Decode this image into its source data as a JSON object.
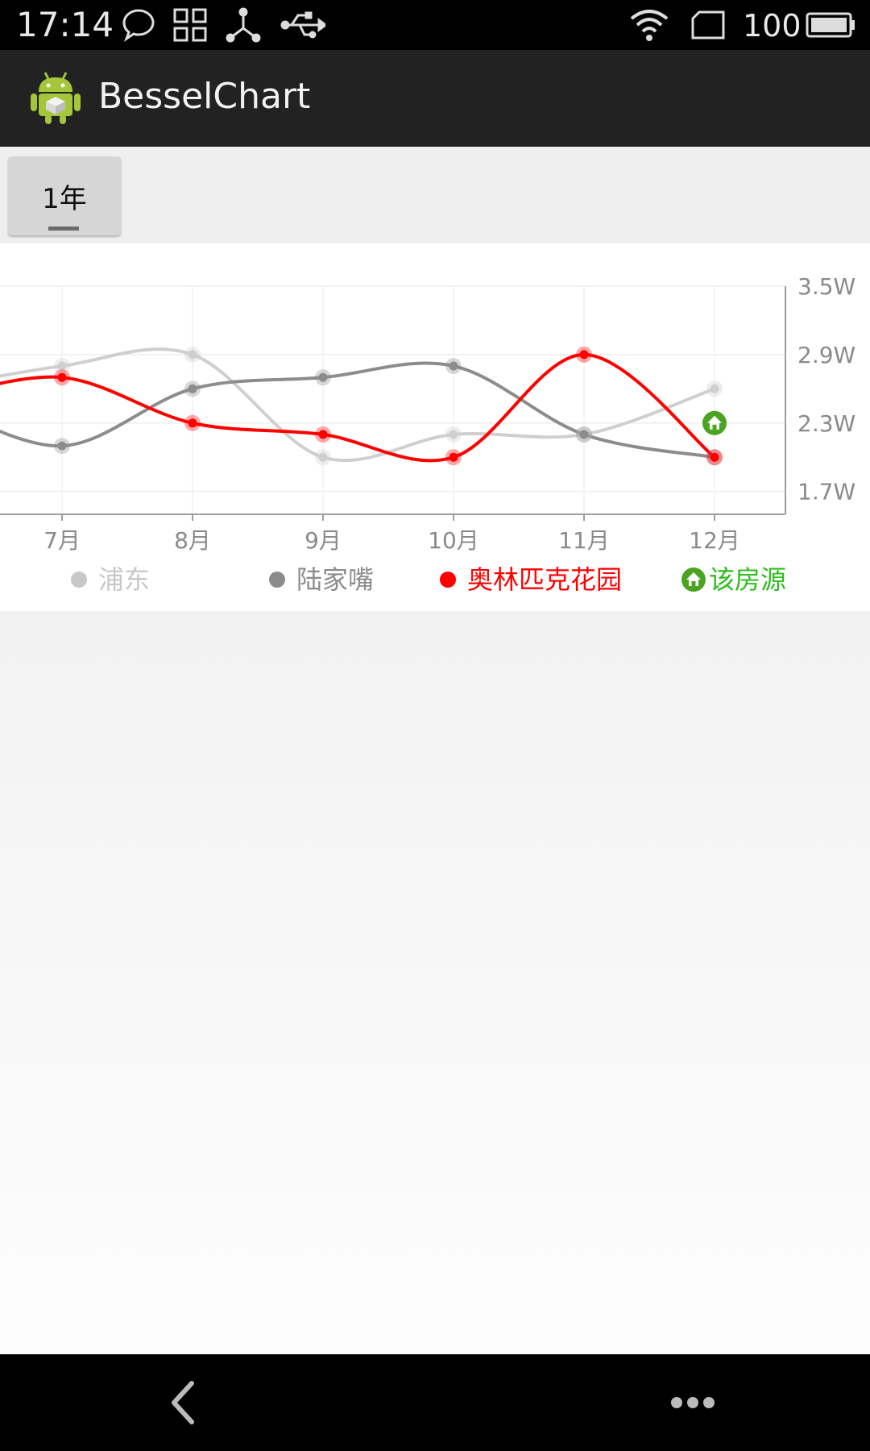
{
  "status_bar": {
    "time": "17:14",
    "battery": "100"
  },
  "action_bar": {
    "title": "BesselChart"
  },
  "tab_row": {
    "button_label": "1年"
  },
  "colors": {
    "pudong": "#cfcfcf",
    "lujiazui": "#8c8c8c",
    "olympic": "#ff0000",
    "this_house": "#2ebd1f",
    "house_icon": "#4aa321"
  },
  "chart_data": {
    "type": "line",
    "smooth": true,
    "categories": [
      "7月",
      "8月",
      "9月",
      "10月",
      "11月",
      "12月"
    ],
    "y_ticks": [
      "3.5W",
      "2.9W",
      "2.3W",
      "1.7W"
    ],
    "ylim": [
      1.5,
      3.5
    ],
    "y_axis_position": "right",
    "series": [
      {
        "name": "浦东",
        "color": "#cfcfcf",
        "values": [
          2.8,
          2.9,
          2.0,
          2.2,
          2.2,
          2.6
        ]
      },
      {
        "name": "陆家嘴",
        "color": "#8c8c8c",
        "values": [
          2.1,
          2.6,
          2.7,
          2.8,
          2.2,
          2.0
        ]
      },
      {
        "name": "奥林匹克花园",
        "color": "#ff0000",
        "values": [
          2.7,
          2.3,
          2.2,
          2.0,
          2.9,
          2.0
        ]
      }
    ],
    "marker": {
      "name": "该房源",
      "category": "12月",
      "value": 2.3
    },
    "legend": [
      {
        "label": "浦东",
        "color": "#c8c8c8",
        "kind": "dot"
      },
      {
        "label": "陆家嘴",
        "color": "#8c8c8c",
        "kind": "dot"
      },
      {
        "label": "奥林匹克花园",
        "color": "#ff0000",
        "kind": "dot"
      },
      {
        "label": "该房源",
        "color": "#2ebd1f",
        "kind": "house"
      }
    ]
  }
}
